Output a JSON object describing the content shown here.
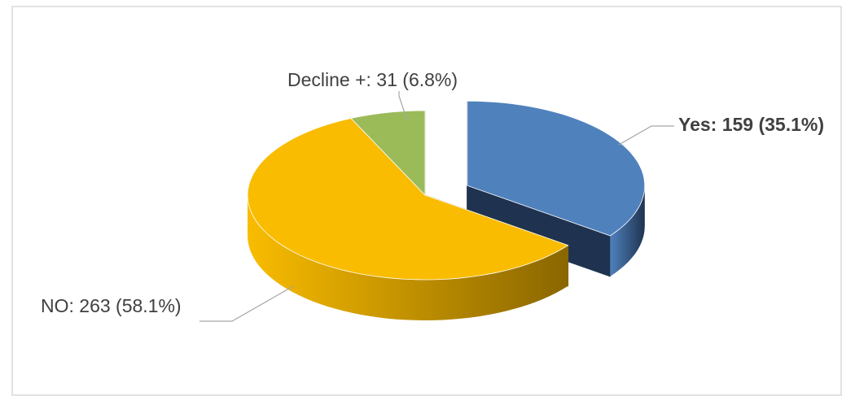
{
  "chart_data": {
    "type": "pie3d",
    "values": [
      159,
      263,
      31
    ],
    "value_labels": [
      "Yes: 159 (35.1%)",
      "NO:  263 (58.1%)",
      "Decline +:  31 (6.8%)"
    ],
    "colors": [
      "#4f81bd",
      "#f9bc00",
      "#9bbb59"
    ],
    "wall_colors": [
      "#1f3350",
      "#8a6600",
      "#5a7030"
    ],
    "explode": [
      true,
      false,
      false
    ],
    "bold_labels": [
      true,
      false,
      false
    ]
  }
}
